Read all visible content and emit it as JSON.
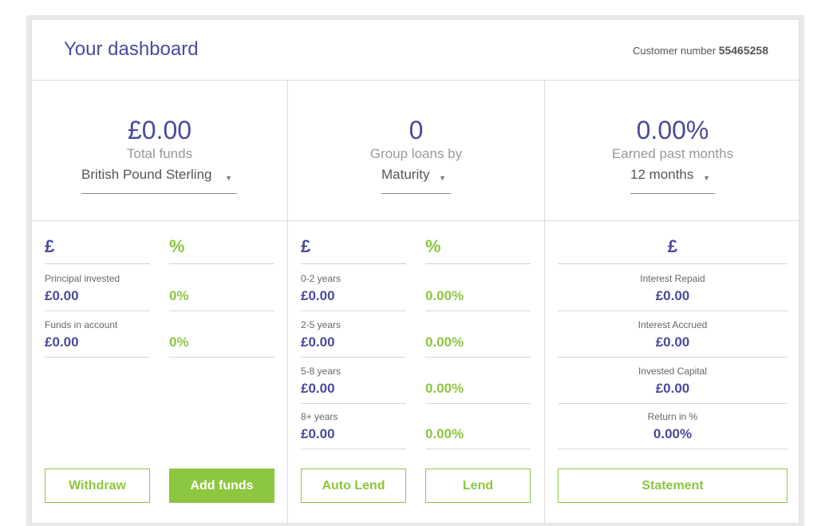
{
  "header": {
    "title": "Your dashboard",
    "customer_label": "Customer number",
    "customer_number": "55465258"
  },
  "funds": {
    "total": "£0.00",
    "label": "Total funds",
    "currency": "British Pound Sterling",
    "pound_symbol": "£",
    "percent_symbol": "%",
    "rows": [
      {
        "label": "Principal invested",
        "value": "£0.00",
        "percent": "0%"
      },
      {
        "label": "Funds in account",
        "value": "£0.00",
        "percent": "0%"
      }
    ],
    "withdraw_label": "Withdraw",
    "add_funds_label": "Add funds"
  },
  "loans": {
    "total": "0",
    "label": "Group loans by",
    "group_by": "Maturity",
    "pound_symbol": "£",
    "percent_symbol": "%",
    "rows": [
      {
        "label": "0-2 years",
        "value": "£0.00",
        "percent": "0.00%"
      },
      {
        "label": "2-5 years",
        "value": "£0.00",
        "percent": "0.00%"
      },
      {
        "label": "5-8 years",
        "value": "£0.00",
        "percent": "0.00%"
      },
      {
        "label": "8+ years",
        "value": "£0.00",
        "percent": "0.00%"
      }
    ],
    "auto_lend_label": "Auto Lend",
    "lend_label": "Lend"
  },
  "earnings": {
    "total": "0.00%",
    "label": "Earned past months",
    "period": "12 months",
    "pound_symbol": "£",
    "rows": [
      {
        "label": "Interest Repaid",
        "value": "£0.00"
      },
      {
        "label": "Interest Accrued",
        "value": "£0.00"
      },
      {
        "label": "Invested Capital",
        "value": "£0.00"
      },
      {
        "label": "Return in %",
        "value": "0.00%"
      }
    ],
    "statement_label": "Statement"
  },
  "colors": {
    "accent_purple": "#4a4a9c",
    "accent_green": "#8dc63f"
  }
}
